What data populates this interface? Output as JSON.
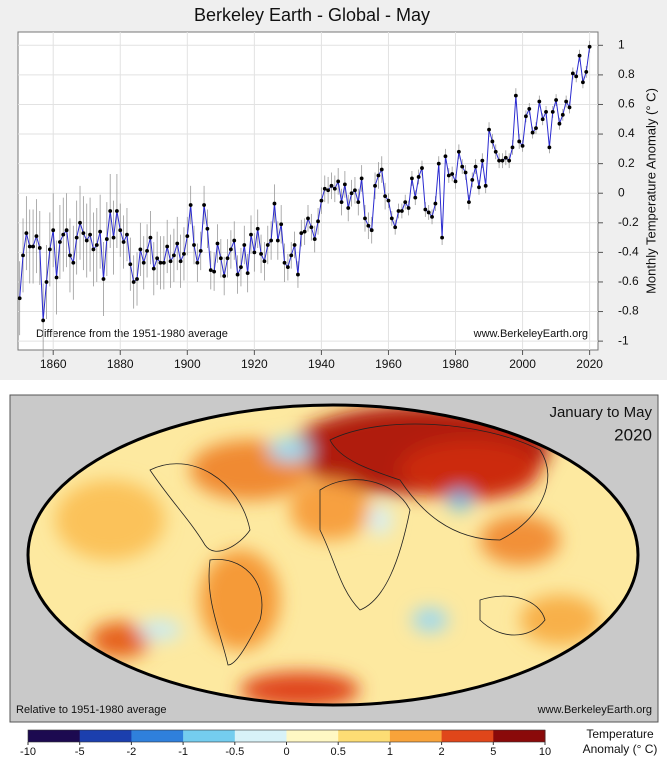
{
  "chart_data": [
    {
      "type": "line",
      "title": "Berkeley Earth - Global - May",
      "y_label": "Monthly Temperature Anomaly (° C)",
      "annotation_left": "Difference from the 1951-1980 average",
      "annotation_right": "www.BerkeleyEarth.org",
      "color": "#2a2ad0",
      "xlim": [
        1849.5,
        2022.5
      ],
      "ylim": [
        -1.06,
        1.09
      ],
      "xticks": [
        1860,
        1880,
        1900,
        1920,
        1940,
        1960,
        1980,
        2000,
        2020
      ],
      "yticks": [
        -1,
        -0.8,
        -0.6,
        -0.4,
        -0.2,
        0,
        0.2,
        0.4,
        0.6,
        0.8,
        1
      ],
      "grid": true,
      "x": [
        1850,
        1851,
        1852,
        1853,
        1854,
        1855,
        1856,
        1857,
        1858,
        1859,
        1860,
        1861,
        1862,
        1863,
        1864,
        1865,
        1866,
        1867,
        1868,
        1869,
        1870,
        1871,
        1872,
        1873,
        1874,
        1875,
        1876,
        1877,
        1878,
        1879,
        1880,
        1881,
        1882,
        1883,
        1884,
        1885,
        1886,
        1887,
        1888,
        1889,
        1890,
        1891,
        1892,
        1893,
        1894,
        1895,
        1896,
        1897,
        1898,
        1899,
        1900,
        1901,
        1902,
        1903,
        1904,
        1905,
        1906,
        1907,
        1908,
        1909,
        1910,
        1911,
        1912,
        1913,
        1914,
        1915,
        1916,
        1917,
        1918,
        1919,
        1920,
        1921,
        1922,
        1923,
        1924,
        1925,
        1926,
        1927,
        1928,
        1929,
        1930,
        1931,
        1932,
        1933,
        1934,
        1935,
        1936,
        1937,
        1938,
        1939,
        1940,
        1941,
        1942,
        1943,
        1944,
        1945,
        1946,
        1947,
        1948,
        1949,
        1950,
        1951,
        1952,
        1953,
        1954,
        1955,
        1956,
        1957,
        1958,
        1959,
        1960,
        1961,
        1962,
        1963,
        1964,
        1965,
        1966,
        1967,
        1968,
        1969,
        1970,
        1971,
        1972,
        1973,
        1974,
        1975,
        1976,
        1977,
        1978,
        1979,
        1980,
        1981,
        1982,
        1983,
        1984,
        1985,
        1986,
        1987,
        1988,
        1989,
        1990,
        1991,
        1992,
        1993,
        1994,
        1995,
        1996,
        1997,
        1998,
        1999,
        2000,
        2001,
        2002,
        2003,
        2004,
        2005,
        2006,
        2007,
        2008,
        2009,
        2010,
        2011,
        2012,
        2013,
        2014,
        2015,
        2016,
        2017,
        2018,
        2019,
        2020
      ],
      "values": [
        -0.71,
        -0.42,
        -0.27,
        -0.36,
        -0.36,
        -0.29,
        -0.37,
        -0.86,
        -0.6,
        -0.38,
        -0.25,
        -0.57,
        -0.33,
        -0.28,
        -0.25,
        -0.42,
        -0.47,
        -0.3,
        -0.2,
        -0.27,
        -0.32,
        -0.28,
        -0.38,
        -0.35,
        -0.26,
        -0.58,
        -0.31,
        -0.12,
        -0.3,
        -0.12,
        -0.25,
        -0.33,
        -0.28,
        -0.48,
        -0.6,
        -0.58,
        -0.38,
        -0.47,
        -0.39,
        -0.3,
        -0.51,
        -0.44,
        -0.47,
        -0.47,
        -0.36,
        -0.46,
        -0.42,
        -0.34,
        -0.46,
        -0.41,
        -0.29,
        -0.08,
        -0.35,
        -0.47,
        -0.39,
        -0.08,
        -0.24,
        -0.52,
        -0.53,
        -0.34,
        -0.44,
        -0.56,
        -0.44,
        -0.38,
        -0.32,
        -0.55,
        -0.5,
        -0.35,
        -0.54,
        -0.28,
        -0.4,
        -0.24,
        -0.41,
        -0.46,
        -0.35,
        -0.32,
        -0.07,
        -0.32,
        -0.21,
        -0.47,
        -0.5,
        -0.42,
        -0.35,
        -0.55,
        -0.27,
        -0.26,
        -0.17,
        -0.23,
        -0.31,
        -0.19,
        -0.05,
        0.03,
        0.02,
        0.05,
        0.03,
        0.08,
        -0.06,
        0.06,
        -0.1,
        0.0,
        0.02,
        -0.06,
        0.1,
        -0.17,
        -0.22,
        -0.25,
        0.05,
        0.12,
        0.16,
        -0.02,
        -0.05,
        -0.17,
        -0.23,
        -0.12,
        -0.12,
        -0.06,
        -0.1,
        0.1,
        -0.03,
        0.11,
        0.17,
        -0.11,
        -0.13,
        -0.16,
        -0.07,
        0.2,
        -0.3,
        0.25,
        0.12,
        0.13,
        0.08,
        0.28,
        0.18,
        0.14,
        -0.06,
        0.09,
        0.18,
        0.04,
        0.22,
        0.05,
        0.43,
        0.35,
        0.28,
        0.22,
        0.22,
        0.24,
        0.22,
        0.31,
        0.66,
        0.35,
        0.32,
        0.52,
        0.57,
        0.41,
        0.44,
        0.62,
        0.5,
        0.55,
        0.31,
        0.55,
        0.63,
        0.47,
        0.53,
        0.62,
        0.58,
        0.81,
        0.79,
        0.93,
        0.75,
        0.82,
        0.99
      ],
      "errors": [
        0.25,
        0.25,
        0.25,
        0.25,
        0.25,
        0.25,
        0.25,
        0.25,
        0.25,
        0.25,
        0.25,
        0.25,
        0.25,
        0.25,
        0.25,
        0.25,
        0.25,
        0.25,
        0.25,
        0.25,
        0.25,
        0.25,
        0.25,
        0.25,
        0.25,
        0.25,
        0.25,
        0.25,
        0.25,
        0.25,
        0.18,
        0.18,
        0.18,
        0.18,
        0.18,
        0.18,
        0.18,
        0.18,
        0.18,
        0.18,
        0.18,
        0.18,
        0.18,
        0.18,
        0.18,
        0.18,
        0.18,
        0.18,
        0.18,
        0.18,
        0.13,
        0.13,
        0.13,
        0.13,
        0.13,
        0.13,
        0.13,
        0.13,
        0.13,
        0.13,
        0.13,
        0.13,
        0.13,
        0.13,
        0.13,
        0.13,
        0.13,
        0.13,
        0.13,
        0.13,
        0.13,
        0.13,
        0.13,
        0.13,
        0.13,
        0.13,
        0.13,
        0.13,
        0.13,
        0.13,
        0.09,
        0.09,
        0.09,
        0.09,
        0.09,
        0.09,
        0.09,
        0.09,
        0.09,
        0.09,
        0.09,
        0.09,
        0.09,
        0.09,
        0.09,
        0.09,
        0.09,
        0.09,
        0.09,
        0.09,
        0.09,
        0.09,
        0.09,
        0.09,
        0.09,
        0.09,
        0.09,
        0.09,
        0.09,
        0.09,
        0.05,
        0.05,
        0.05,
        0.05,
        0.05,
        0.05,
        0.05,
        0.05,
        0.05,
        0.05,
        0.05,
        0.05,
        0.05,
        0.05,
        0.05,
        0.05,
        0.05,
        0.05,
        0.05,
        0.05,
        0.05,
        0.05,
        0.05,
        0.05,
        0.05,
        0.05,
        0.05,
        0.05,
        0.05,
        0.05,
        0.05,
        0.05,
        0.05,
        0.05,
        0.05,
        0.05,
        0.05,
        0.05,
        0.05,
        0.05,
        0.04,
        0.04,
        0.04,
        0.04,
        0.04,
        0.04,
        0.04,
        0.04,
        0.04,
        0.04,
        0.04,
        0.04,
        0.04,
        0.04,
        0.04,
        0.04,
        0.04,
        0.04,
        0.04,
        0.04,
        0.04
      ]
    },
    {
      "type": "map",
      "title": "January to May",
      "subtitle": "2020",
      "annotation_left": "Relative to 1951-1980 average",
      "annotation_right": "www.BerkeleyEarth.org",
      "colorbar_label": [
        "Temperature",
        "Anomaly (° C)"
      ],
      "colorbar_ticks": [
        -10,
        -5,
        -2,
        -1,
        -0.5,
        0,
        0.5,
        1,
        2,
        5,
        10
      ],
      "colorbar_colors": [
        "#1c0a50",
        "#1b3fae",
        "#2f80dc",
        "#74cdef",
        "#d8f2f8",
        "#fff8c4",
        "#fddd74",
        "#f8a33a",
        "#e0461a",
        "#8a0a0a"
      ]
    }
  ]
}
